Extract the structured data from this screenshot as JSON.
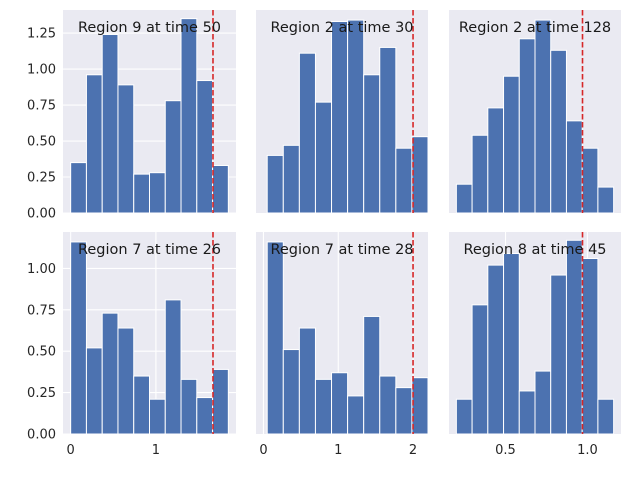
{
  "chart_data": [
    {
      "type": "bar",
      "title": "Region 9 at time 50",
      "bin_edges": [
        0.0,
        0.185,
        0.37,
        0.555,
        0.74,
        0.925,
        1.11,
        1.295,
        1.48,
        1.665,
        1.85
      ],
      "values": [
        0.35,
        0.96,
        1.24,
        0.89,
        0.27,
        0.28,
        0.78,
        1.35,
        0.92,
        0.33
      ],
      "threshold": 1.67,
      "xlim": [
        -0.09,
        1.94
      ],
      "ylim": [
        0,
        1.41
      ],
      "xticks": [],
      "yticks": [
        0.0,
        0.25,
        0.5,
        0.75,
        1.0,
        1.25
      ],
      "ytick_labels": [
        "0.00",
        "0.25",
        "0.50",
        "0.75",
        "1.00",
        "1.25"
      ]
    },
    {
      "type": "bar",
      "title": "Region 2 at time 30",
      "bin_edges": [
        0.05,
        0.265,
        0.48,
        0.695,
        0.91,
        1.125,
        1.34,
        1.555,
        1.77,
        1.985,
        2.2
      ],
      "values": [
        0.4,
        0.47,
        1.11,
        0.77,
        1.33,
        1.34,
        0.96,
        1.15,
        0.45,
        0.53
      ],
      "threshold": 2.0,
      "xlim": [
        -0.1,
        2.2
      ],
      "ylim": [
        0,
        1.41
      ],
      "xticks": [],
      "yticks": [],
      "ytick_labels": []
    },
    {
      "type": "bar",
      "title": "Region 2 at time 128",
      "bin_edges": [
        0.2,
        0.296,
        0.392,
        0.488,
        0.584,
        0.68,
        0.776,
        0.872,
        0.968,
        1.064,
        1.16
      ],
      "values": [
        0.2,
        0.54,
        0.73,
        0.95,
        1.21,
        1.34,
        1.13,
        0.64,
        0.45,
        0.18
      ],
      "threshold": 0.97,
      "xlim": [
        0.155,
        1.205
      ],
      "ylim": [
        0,
        1.41
      ],
      "xticks": [],
      "yticks": [],
      "ytick_labels": []
    },
    {
      "type": "bar",
      "title": "Region 7 at time 26",
      "bin_edges": [
        0.0,
        0.185,
        0.37,
        0.555,
        0.74,
        0.925,
        1.11,
        1.295,
        1.48,
        1.665,
        1.85
      ],
      "values": [
        1.16,
        0.52,
        0.73,
        0.64,
        0.35,
        0.21,
        0.81,
        0.33,
        0.22,
        0.39
      ],
      "threshold": 1.67,
      "xlim": [
        -0.09,
        1.94
      ],
      "ylim": [
        0,
        1.22
      ],
      "xticks": [
        0,
        1
      ],
      "xtick_labels": [
        "0",
        "1"
      ],
      "yticks": [
        0.0,
        0.25,
        0.5,
        0.75,
        1.0
      ],
      "ytick_labels": [
        "0.00",
        "0.25",
        "0.50",
        "0.75",
        "1.00"
      ]
    },
    {
      "type": "bar",
      "title": "Region 7 at time 28",
      "bin_edges": [
        0.05,
        0.265,
        0.48,
        0.695,
        0.91,
        1.125,
        1.34,
        1.555,
        1.77,
        1.985,
        2.2
      ],
      "values": [
        1.16,
        0.51,
        0.64,
        0.33,
        0.37,
        0.23,
        0.71,
        0.35,
        0.28,
        0.34
      ],
      "threshold": 2.0,
      "xlim": [
        -0.1,
        2.2
      ],
      "ylim": [
        0,
        1.22
      ],
      "xticks": [
        0,
        1,
        2
      ],
      "xtick_labels": [
        "0",
        "1",
        "2"
      ],
      "yticks": [],
      "ytick_labels": []
    },
    {
      "type": "bar",
      "title": "Region 8 at time 45",
      "bin_edges": [
        0.2,
        0.296,
        0.392,
        0.488,
        0.584,
        0.68,
        0.776,
        0.872,
        0.968,
        1.064,
        1.16
      ],
      "values": [
        0.21,
        0.78,
        1.02,
        1.09,
        0.26,
        0.38,
        0.96,
        1.17,
        1.06,
        0.21
      ],
      "threshold": 0.97,
      "xlim": [
        0.155,
        1.205
      ],
      "ylim": [
        0,
        1.22
      ],
      "xticks": [
        0.5,
        1.0
      ],
      "xtick_labels": [
        "0.5",
        "1.0"
      ],
      "yticks": [],
      "ytick_labels": []
    }
  ],
  "style": {
    "axes_bg": "#eaeaf2",
    "grid": "#ffffff",
    "bar_fill": "#4c72b0",
    "bar_edge": "#ffffff",
    "threshold_line": "#d62728",
    "tick_text": "#262626"
  }
}
